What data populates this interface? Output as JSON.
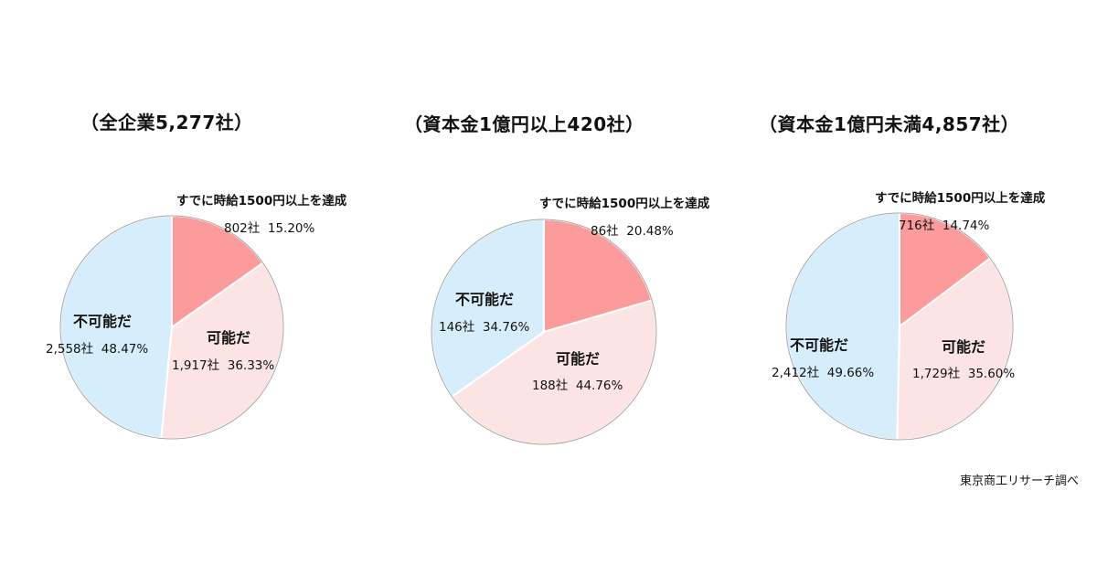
{
  "colors": {
    "already": "#fc9b9c",
    "possible": "#fce4e4",
    "impossible": "#d6eefb",
    "border": "#a6a6a6"
  },
  "chart_data": [
    {
      "type": "pie",
      "title": "（全企業5,277社）",
      "slices": [
        {
          "label": "すでに時給1500円以上を達成",
          "count": "802社",
          "percent": "15.20%",
          "value": 15.2,
          "color": "#fc9b9c"
        },
        {
          "label": "可能だ",
          "count": "1,917社",
          "percent": "36.33%",
          "value": 36.33,
          "color": "#fce4e4"
        },
        {
          "label": "不可能だ",
          "count": "2,558社",
          "percent": "48.47%",
          "value": 48.47,
          "color": "#d6eefb"
        }
      ]
    },
    {
      "type": "pie",
      "title": "（資本金1億円以上420社）",
      "slices": [
        {
          "label": "すでに時給1500円以上を達成",
          "count": "86社",
          "percent": "20.48%",
          "value": 20.48,
          "color": "#fc9b9c"
        },
        {
          "label": "可能だ",
          "count": "188社",
          "percent": "44.76%",
          "value": 44.76,
          "color": "#fce4e4"
        },
        {
          "label": "不可能だ",
          "count": "146社",
          "percent": "34.76%",
          "value": 34.76,
          "color": "#d6eefb"
        }
      ]
    },
    {
      "type": "pie",
      "title": "（資本金1億円未満4,857社）",
      "slices": [
        {
          "label": "すでに時給1500円以上を達成",
          "count": "716社",
          "percent": "14.74%",
          "value": 14.74,
          "color": "#fc9b9c"
        },
        {
          "label": "可能だ",
          "count": "1,729社",
          "percent": "35.60%",
          "value": 35.6,
          "color": "#fce4e4"
        },
        {
          "label": "不可能だ",
          "count": "2,412社",
          "percent": "49.66%",
          "value": 49.66,
          "color": "#d6eefb"
        }
      ]
    }
  ],
  "source": "東京商工リサーチ調べ"
}
